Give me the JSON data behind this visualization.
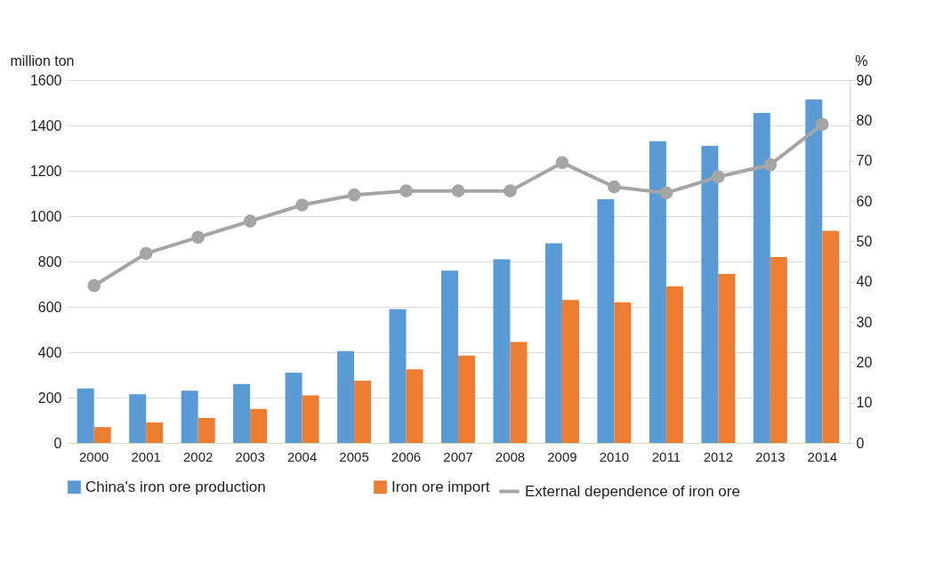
{
  "chart_data": {
    "type": "bar",
    "ylabel": "million ton",
    "y2label": "%",
    "categories": [
      "2000",
      "2001",
      "2002",
      "2003",
      "2004",
      "2005",
      "2006",
      "2007",
      "2008",
      "2009",
      "2010",
      "2011",
      "2012",
      "2013",
      "2014"
    ],
    "series": [
      {
        "name": "China's iron ore production",
        "color": "#5b9bd5",
        "values": [
          240,
          215,
          230,
          260,
          310,
          405,
          590,
          760,
          810,
          880,
          1075,
          1330,
          1310,
          1455,
          1515
        ]
      },
      {
        "name": "Iron ore import",
        "color": "#ed7d31",
        "values": [
          70,
          90,
          110,
          150,
          210,
          275,
          325,
          385,
          445,
          630,
          620,
          690,
          745,
          820,
          935
        ]
      },
      {
        "name": "External dependence of iron ore",
        "type": "line",
        "axis": "y2",
        "color": "#a5a5a5",
        "marker": "circle",
        "values": [
          39,
          47,
          51,
          55,
          59,
          61.5,
          62.5,
          62.5,
          62.5,
          69.5,
          63.5,
          62,
          66,
          69,
          79
        ]
      }
    ],
    "ylim": [
      0,
      1600
    ],
    "yticks": [
      0,
      200,
      400,
      600,
      800,
      1000,
      1200,
      1400,
      1600
    ],
    "y2lim": [
      0,
      90
    ],
    "y2ticks": [
      0,
      10,
      20,
      30,
      40,
      50,
      60,
      70,
      80,
      90
    ],
    "grid": "y",
    "legend": "bottom"
  }
}
